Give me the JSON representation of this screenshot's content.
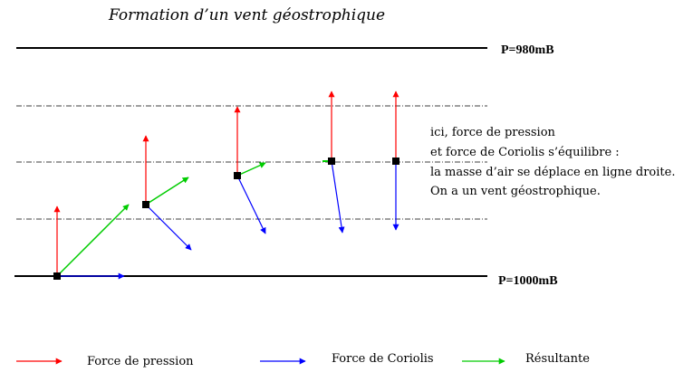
{
  "title": "Formation d’un vent géostrophique",
  "isobars": {
    "top_label": "P=980mB",
    "bottom_label": "P=1000mB"
  },
  "note": {
    "lines": [
      "ici, force de pression",
      "et force de Coriolis s’équilibre :",
      "la masse d’air se déplace en ligne droite.",
      "On a un vent géostrophique."
    ]
  },
  "legend": {
    "pressure": "Force de pression",
    "coriolis": "Force de Coriolis",
    "resultant": "Résultante"
  },
  "colors": {
    "pressure": "#ff0000",
    "coriolis": "#0000ff",
    "resultant": "#00cc00",
    "parcel": "#000000"
  }
}
